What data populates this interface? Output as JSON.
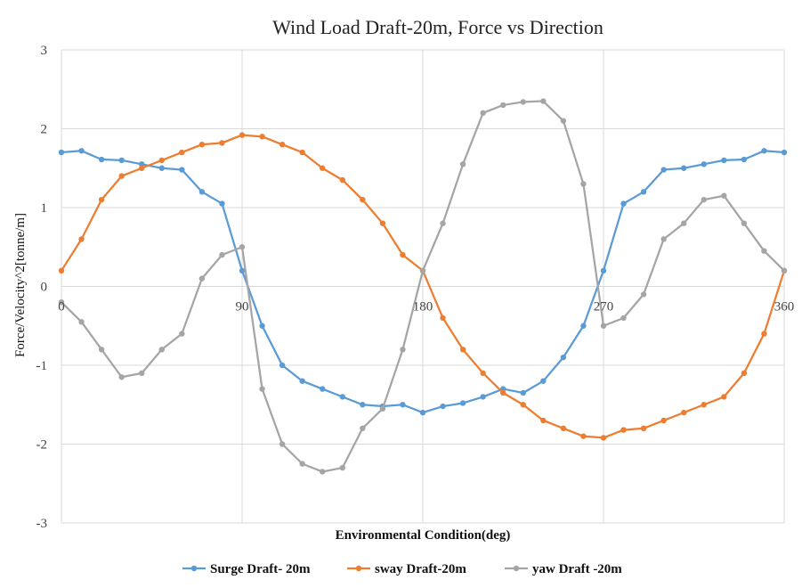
{
  "chart_data": {
    "type": "line",
    "title": "Wind Load Draft-20m, Force vs Direction",
    "xlabel": "Environmental Condition(deg)",
    "ylabel": "Force/Velocity^2[tonne/m]",
    "xlim": [
      0,
      360
    ],
    "ylim": [
      -3,
      3
    ],
    "x_ticks": [
      "0",
      "90",
      "180",
      "270",
      "360"
    ],
    "y_ticks": [
      "3",
      "2",
      "1",
      "0",
      "-1",
      "-2",
      "-3"
    ],
    "grid": true,
    "legend_position": "bottom",
    "x": [
      0,
      10,
      20,
      30,
      40,
      50,
      60,
      70,
      80,
      90,
      100,
      110,
      120,
      130,
      140,
      150,
      160,
      170,
      180,
      190,
      200,
      210,
      220,
      230,
      240,
      250,
      260,
      270,
      280,
      290,
      300,
      310,
      320,
      330,
      340,
      350,
      360
    ],
    "series": [
      {
        "name": "Surge Draft- 20m",
        "color": "#5B9BD5",
        "values": [
          1.7,
          1.72,
          1.61,
          1.6,
          1.55,
          1.5,
          1.48,
          1.2,
          1.05,
          0.2,
          -0.5,
          -1.0,
          -1.2,
          -1.3,
          -1.4,
          -1.5,
          -1.52,
          -1.5,
          -1.6,
          -1.52,
          -1.48,
          -1.4,
          -1.3,
          -1.35,
          -1.2,
          -0.9,
          -0.5,
          0.2,
          1.05,
          1.2,
          1.48,
          1.5,
          1.55,
          1.6,
          1.61,
          1.72,
          1.7
        ]
      },
      {
        "name": "sway Draft-20m",
        "color": "#ED7D31",
        "values": [
          0.2,
          0.6,
          1.1,
          1.4,
          1.5,
          1.6,
          1.7,
          1.8,
          1.82,
          1.92,
          1.9,
          1.8,
          1.7,
          1.5,
          1.35,
          1.1,
          0.8,
          0.4,
          0.2,
          -0.4,
          -0.8,
          -1.1,
          -1.35,
          -1.5,
          -1.7,
          -1.8,
          -1.9,
          -1.92,
          -1.82,
          -1.8,
          -1.7,
          -1.6,
          -1.5,
          -1.4,
          -1.1,
          -0.6,
          0.2
        ]
      },
      {
        "name": "yaw Draft -20m",
        "color": "#A5A5A5",
        "values": [
          -0.2,
          -0.45,
          -0.8,
          -1.15,
          -1.1,
          -0.8,
          -0.6,
          0.1,
          0.4,
          0.5,
          -1.3,
          -2.0,
          -2.25,
          -2.35,
          -2.3,
          -1.8,
          -1.55,
          -0.8,
          0.2,
          0.8,
          1.55,
          2.2,
          2.3,
          2.34,
          2.35,
          2.1,
          1.3,
          -0.5,
          -0.4,
          -0.1,
          0.6,
          0.8,
          1.1,
          1.15,
          0.8,
          0.45,
          0.2
        ]
      }
    ]
  }
}
